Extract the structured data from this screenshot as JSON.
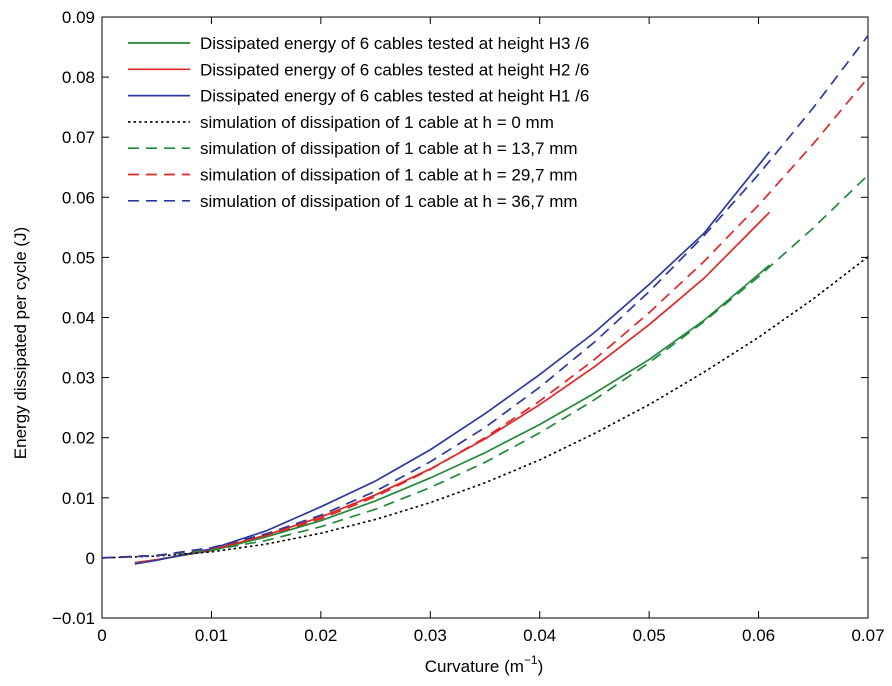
{
  "chart_data": {
    "type": "line",
    "xlabel": "Curvature (m",
    "xlabel_sup": "−1",
    "xlabel_close": ")",
    "ylabel": "Energy dissipated per cycle (J)",
    "xlim": [
      0,
      0.07
    ],
    "ylim": [
      -0.01,
      0.09
    ],
    "xticks": [
      0,
      0.01,
      0.02,
      0.03,
      0.04,
      0.05,
      0.06,
      0.07
    ],
    "xtick_labels": [
      "0",
      "0.01",
      "0.02",
      "0.03",
      "0.04",
      "0.05",
      "0.06",
      "0.07"
    ],
    "yticks": [
      -0.01,
      0,
      0.01,
      0.02,
      0.03,
      0.04,
      0.05,
      0.06,
      0.07,
      0.08,
      0.09
    ],
    "ytick_labels": [
      "−0.01",
      "0",
      "0.01",
      "0.02",
      "0.03",
      "0.04",
      "0.05",
      "0.06",
      "0.07",
      "0.08",
      "0.09"
    ],
    "grid": false,
    "legend_position": "top-left",
    "series": [
      {
        "name": "Dissipated energy of 6 cables tested at height H3 /6",
        "color": "#1f8a3a",
        "dash": "solid",
        "x": [
          0.003,
          0.005,
          0.01,
          0.015,
          0.02,
          0.025,
          0.03,
          0.035,
          0.04,
          0.045,
          0.05,
          0.055,
          0.061
        ],
        "y": [
          -0.0008,
          -0.0003,
          0.0012,
          0.0035,
          0.0062,
          0.0095,
          0.0133,
          0.0175,
          0.0222,
          0.0274,
          0.033,
          0.0395,
          0.0487
        ]
      },
      {
        "name": "Dissipated energy of 6 cables tested at height H2 /6",
        "color": "#e32626",
        "dash": "solid",
        "x": [
          0.003,
          0.005,
          0.01,
          0.015,
          0.02,
          0.025,
          0.03,
          0.035,
          0.04,
          0.045,
          0.05,
          0.055,
          0.061
        ],
        "y": [
          -0.0008,
          -0.0003,
          0.0013,
          0.0038,
          0.0068,
          0.0105,
          0.0148,
          0.0198,
          0.0255,
          0.0318,
          0.0388,
          0.0465,
          0.0575
        ]
      },
      {
        "name": "Dissipated energy of 6 cables tested at height H1 /6",
        "color": "#2b3a9e",
        "dash": "solid",
        "x": [
          0.003,
          0.005,
          0.01,
          0.015,
          0.02,
          0.025,
          0.03,
          0.035,
          0.04,
          0.045,
          0.05,
          0.055,
          0.061
        ],
        "y": [
          -0.001,
          -0.0004,
          0.0015,
          0.0045,
          0.0085,
          0.0128,
          0.018,
          0.024,
          0.0305,
          0.0375,
          0.0455,
          0.054,
          0.0676
        ]
      },
      {
        "name": "simulation of dissipation of 1 cable at h = 0 mm",
        "color": "#000000",
        "dash": "dotted",
        "x": [
          0,
          0.005,
          0.01,
          0.015,
          0.02,
          0.025,
          0.03,
          0.035,
          0.04,
          0.045,
          0.05,
          0.055,
          0.06,
          0.065,
          0.07
        ],
        "y": [
          0,
          0.0003,
          0.001,
          0.0023,
          0.0041,
          0.0064,
          0.0092,
          0.0125,
          0.0163,
          0.0207,
          0.0255,
          0.0309,
          0.0367,
          0.0431,
          0.0501
        ]
      },
      {
        "name": "simulation of dissipation of 1 cable at h = 13,7 mm",
        "color": "#1f8a3a",
        "dash": "dashed",
        "x": [
          0,
          0.005,
          0.01,
          0.015,
          0.02,
          0.025,
          0.03,
          0.035,
          0.04,
          0.045,
          0.05,
          0.055,
          0.06,
          0.065,
          0.07
        ],
        "y": [
          0,
          0.0004,
          0.0013,
          0.0029,
          0.0052,
          0.0081,
          0.0117,
          0.0159,
          0.0208,
          0.0263,
          0.0325,
          0.0393,
          0.0468,
          0.0549,
          0.0637
        ]
      },
      {
        "name": "simulation of dissipation of 1 cable at h = 29,7 mm",
        "color": "#e32626",
        "dash": "dashed",
        "x": [
          0,
          0.005,
          0.01,
          0.015,
          0.02,
          0.025,
          0.03,
          0.035,
          0.04,
          0.045,
          0.05,
          0.055,
          0.06,
          0.065,
          0.07
        ],
        "y": [
          0,
          0.0004,
          0.0016,
          0.0037,
          0.0065,
          0.0102,
          0.0147,
          0.02,
          0.0261,
          0.033,
          0.0408,
          0.0493,
          0.0587,
          0.0689,
          0.0799
        ]
      },
      {
        "name": "simulation of dissipation of 1 cable at h = 36,7 mm",
        "color": "#2b3a9e",
        "dash": "dashed",
        "x": [
          0,
          0.005,
          0.01,
          0.015,
          0.02,
          0.025,
          0.03,
          0.035,
          0.04,
          0.045,
          0.05,
          0.055,
          0.06,
          0.065,
          0.07
        ],
        "y": [
          0,
          0.0004,
          0.0017,
          0.004,
          0.0071,
          0.0111,
          0.016,
          0.0217,
          0.0284,
          0.0359,
          0.0443,
          0.0536,
          0.0638,
          0.0749,
          0.0869
        ]
      }
    ]
  }
}
